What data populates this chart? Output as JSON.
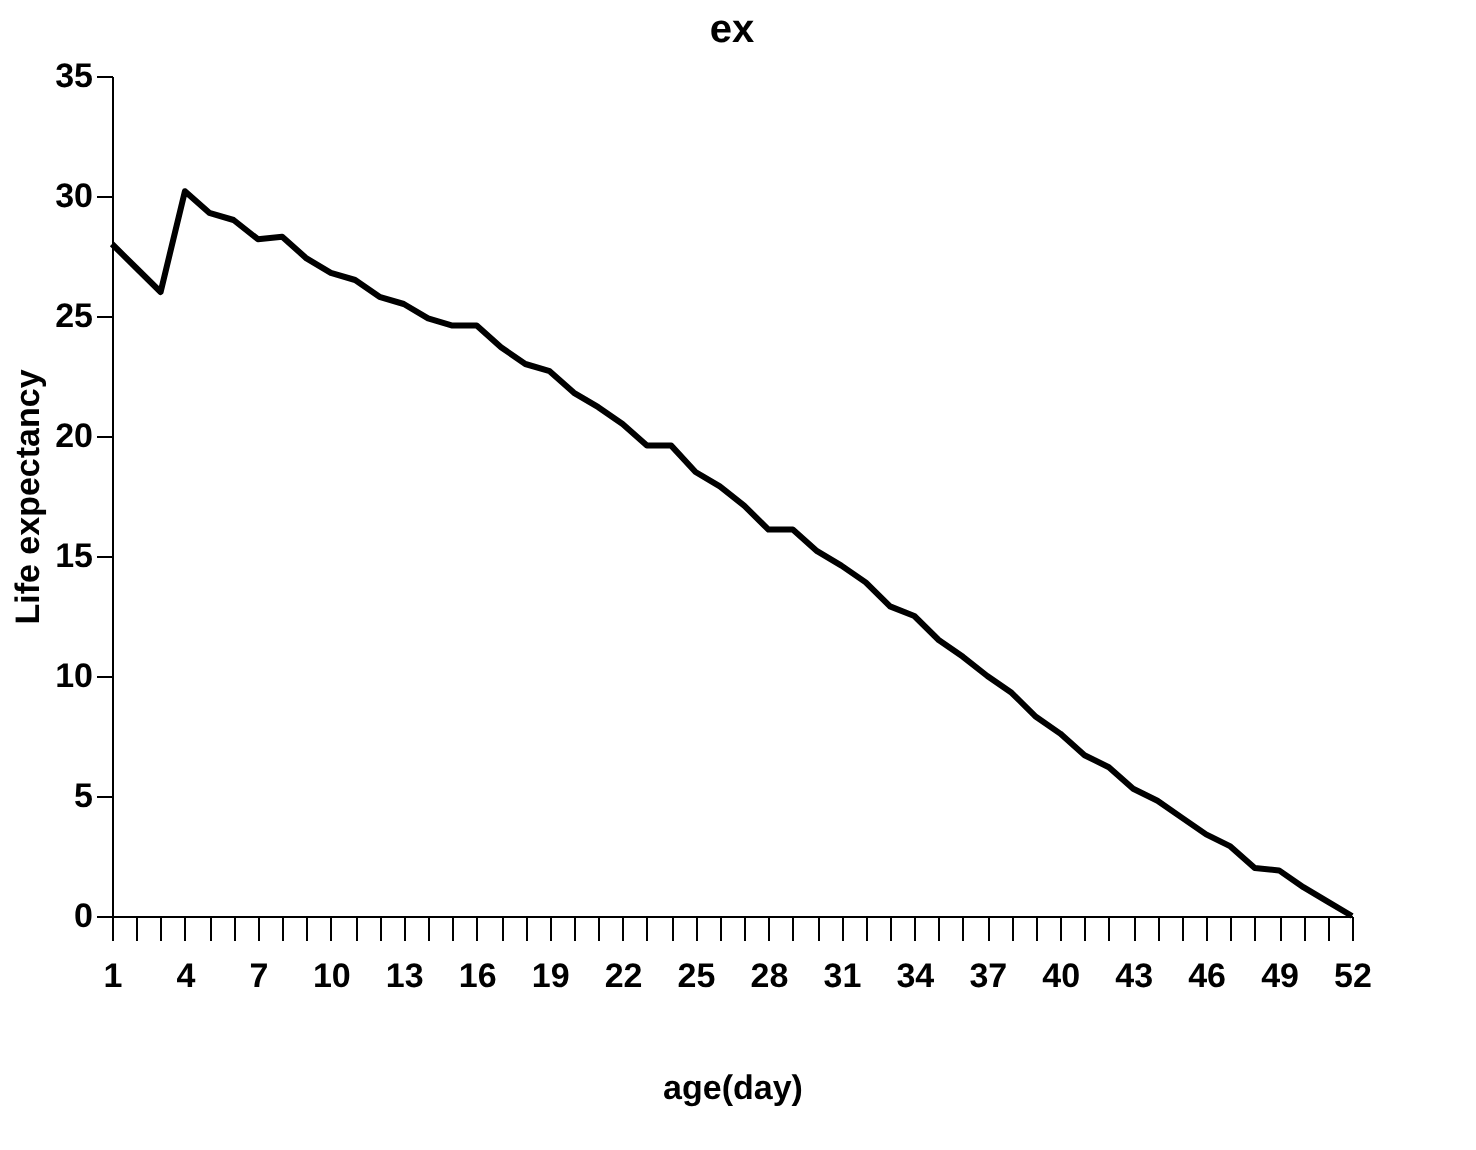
{
  "chart_data": {
    "type": "line",
    "title": "ex",
    "xlabel": "age(day)",
    "ylabel": "Life expectancy",
    "categories": [
      "1",
      null,
      null,
      "4",
      null,
      null,
      "7",
      null,
      null,
      "10",
      null,
      null,
      "13",
      null,
      null,
      "16",
      null,
      null,
      "19",
      null,
      null,
      "22",
      null,
      null,
      "25",
      null,
      null,
      "28",
      null,
      null,
      "31",
      null,
      null,
      "34",
      null,
      null,
      "37",
      null,
      null,
      "40",
      null,
      null,
      "43",
      null,
      null,
      "46",
      null,
      null,
      "49",
      null,
      null,
      "52"
    ],
    "series": [
      {
        "color": "#000000",
        "values": [
          28,
          27,
          26,
          30.2,
          29.3,
          29.0,
          28.2,
          28.3,
          27.4,
          26.8,
          26.5,
          25.8,
          25.5,
          24.9,
          24.6,
          24.6,
          23.7,
          23.0,
          22.7,
          21.8,
          21.2,
          20.5,
          19.6,
          19.6,
          18.5,
          17.9,
          17.1,
          16.1,
          16.1,
          15.2,
          14.6,
          13.9,
          12.9,
          12.5,
          11.5,
          10.8,
          10.0,
          9.3,
          8.3,
          7.6,
          6.7,
          6.2,
          5.3,
          4.8,
          4.1,
          3.4,
          2.9,
          2.0,
          1.9,
          1.2,
          0.6,
          0
        ]
      }
    ],
    "ylim": [
      0,
      35
    ],
    "yticks": [
      0,
      5,
      10,
      15,
      20,
      25,
      30,
      35
    ],
    "grid": false,
    "marker": "none",
    "line_style": "solid"
  }
}
